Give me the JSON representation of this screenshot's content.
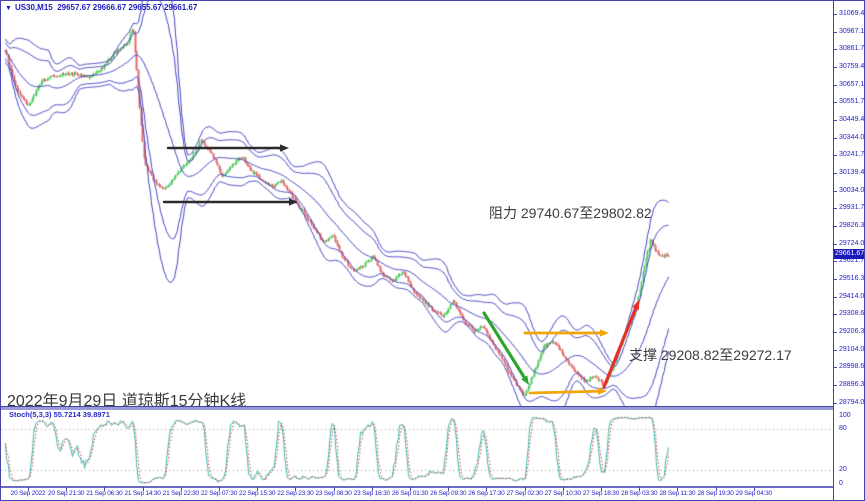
{
  "header": {
    "symbol_period": "US30,M15",
    "ohlc": "29657.67 29666.67 29655.67 29661.67"
  },
  "annotations": {
    "caption": "2022年9月29日 道琼斯15分钟K线",
    "resistance_text": "阻力 29740.67至29802.82",
    "support_text": "支撑 29208.82至29272.17",
    "arrows": [
      {
        "name": "resistance-arrow-upper",
        "color": "#2b2b2b",
        "width": 2.4,
        "from": [
          167,
          147
        ],
        "to": [
          288,
          147
        ]
      },
      {
        "name": "resistance-arrow-lower",
        "color": "#2b2b2b",
        "width": 2.4,
        "from": [
          163,
          201
        ],
        "to": [
          297,
          201
        ]
      },
      {
        "name": "downtrend-arrow",
        "color": "#2ca52c",
        "width": 3.2,
        "from": [
          483,
          312
        ],
        "to": [
          528,
          384
        ]
      },
      {
        "name": "support-arrow-upper",
        "color": "#f2a50a",
        "width": 2.8,
        "from": [
          524,
          332
        ],
        "to": [
          608,
          332
        ]
      },
      {
        "name": "support-arrow-lower",
        "color": "#f2a50a",
        "width": 2.8,
        "from": [
          529,
          392
        ],
        "to": [
          606,
          390
        ]
      },
      {
        "name": "uptrend-arrow",
        "color": "#e63226",
        "width": 3.2,
        "from": [
          603,
          386
        ],
        "to": [
          638,
          299
        ]
      }
    ]
  },
  "indicator": {
    "label": "Stoch(5,3,3) 55.7214 39.8971",
    "levels": [
      100,
      80,
      20,
      0
    ]
  },
  "price_axis": {
    "current": "29661.67",
    "labels": [
      "31069.40",
      "30967.10",
      "30861.70",
      "30759.40",
      "30657.10",
      "30551.70",
      "30449.40",
      "30344.00",
      "30241.70",
      "30139.40",
      "30034.00",
      "29931.70",
      "29826.30",
      "29724.00",
      "29621.70",
      "29516.30",
      "29414.00",
      "29308.60",
      "29206.30",
      "29104.00",
      "28998.60",
      "28896.30",
      "28794.00"
    ]
  },
  "time_axis": {
    "labels": [
      "20 Sep 2022",
      "20 Sep 21:30",
      "21 Sep 06:30",
      "21 Sep 14:30",
      "21 Sep 22:30",
      "22 Sep 07:30",
      "22 Sep 15:30",
      "22 Sep 23:30",
      "23 Sep 08:30",
      "23 Sep 16:30",
      "26 Sep 01:30",
      "26 Sep 09:30",
      "26 Sep 17:30",
      "27 Sep 02:30",
      "27 Sep 10:30",
      "27 Sep 18:30",
      "28 Sep 03:30",
      "28 Sep 11:30",
      "28 Sep 19:30",
      "29 Sep 04:30"
    ]
  },
  "colors": {
    "frame": "#4444aa",
    "axis_text": "#2222cc",
    "band": "#4444c0",
    "candle_up": "#55cc66",
    "candle_down": "#e06a6a",
    "stoch_k": "#3cb8b2",
    "stoch_d": "#cc4444",
    "stoch_level": "#a0a0a0",
    "price_tag_bg": "#1a1ab8",
    "annotation_text": "#3c3c3c"
  },
  "chart_data": {
    "type": "candlestick",
    "symbol": "US30",
    "timeframe": "M15",
    "title_quote": {
      "open": 29657.67,
      "high": 29666.67,
      "low": 29655.67,
      "close": 29661.67
    },
    "y_range": [
      28794.0,
      31069.4
    ],
    "x_range": [
      "20 Sep 2022",
      "29 Sep 04:30"
    ],
    "resistance_zone": [
      29740.67,
      29802.82
    ],
    "support_zone": [
      29208.82,
      29272.17
    ],
    "overlays": "double blue volatility bands (inner and outer envelope) with blue midline",
    "indicator_pane": {
      "type": "stochastic",
      "params": [
        5,
        3,
        3
      ],
      "k": 55.7214,
      "d": 39.8971,
      "levels": [
        80,
        20
      ]
    },
    "bar_count": 445,
    "render_seed": 9,
    "price_path": [
      [
        0.0,
        30860
      ],
      [
        0.015,
        30650
      ],
      [
        0.035,
        30530
      ],
      [
        0.055,
        30680
      ],
      [
        0.075,
        30710
      ],
      [
        0.1,
        30720
      ],
      [
        0.125,
        30700
      ],
      [
        0.145,
        30750
      ],
      [
        0.165,
        30845
      ],
      [
        0.185,
        30895
      ],
      [
        0.193,
        31000
      ],
      [
        0.201,
        30600
      ],
      [
        0.21,
        30200
      ],
      [
        0.225,
        30090
      ],
      [
        0.24,
        30040
      ],
      [
        0.258,
        30130
      ],
      [
        0.281,
        30230
      ],
      [
        0.296,
        30330
      ],
      [
        0.312,
        30240
      ],
      [
        0.327,
        30120
      ],
      [
        0.342,
        30180
      ],
      [
        0.357,
        30240
      ],
      [
        0.372,
        30150
      ],
      [
        0.388,
        30090
      ],
      [
        0.403,
        30060
      ],
      [
        0.418,
        30090
      ],
      [
        0.433,
        30000
      ],
      [
        0.448,
        29916
      ],
      [
        0.464,
        29828
      ],
      [
        0.479,
        29740
      ],
      [
        0.494,
        29770
      ],
      [
        0.509,
        29653
      ],
      [
        0.524,
        29565
      ],
      [
        0.54,
        29594
      ],
      [
        0.555,
        29653
      ],
      [
        0.57,
        29536
      ],
      [
        0.585,
        29507
      ],
      [
        0.6,
        29565
      ],
      [
        0.616,
        29448
      ],
      [
        0.631,
        29389
      ],
      [
        0.646,
        29331
      ],
      [
        0.661,
        29301
      ],
      [
        0.676,
        29389
      ],
      [
        0.692,
        29272
      ],
      [
        0.707,
        29214
      ],
      [
        0.722,
        29243
      ],
      [
        0.737,
        29126
      ],
      [
        0.752,
        29038
      ],
      [
        0.767,
        28921
      ],
      [
        0.783,
        28833
      ],
      [
        0.798,
        28979
      ],
      [
        0.813,
        29126
      ],
      [
        0.828,
        29155
      ],
      [
        0.843,
        29067
      ],
      [
        0.859,
        28979
      ],
      [
        0.874,
        28921
      ],
      [
        0.889,
        28950
      ],
      [
        0.904,
        28892
      ],
      [
        0.919,
        29038
      ],
      [
        0.935,
        29214
      ],
      [
        0.95,
        29331
      ],
      [
        0.957,
        29448
      ],
      [
        0.965,
        29623
      ],
      [
        0.973,
        29740
      ],
      [
        0.981,
        29682
      ],
      [
        0.989,
        29653
      ],
      [
        1.0,
        29661.67
      ]
    ]
  }
}
